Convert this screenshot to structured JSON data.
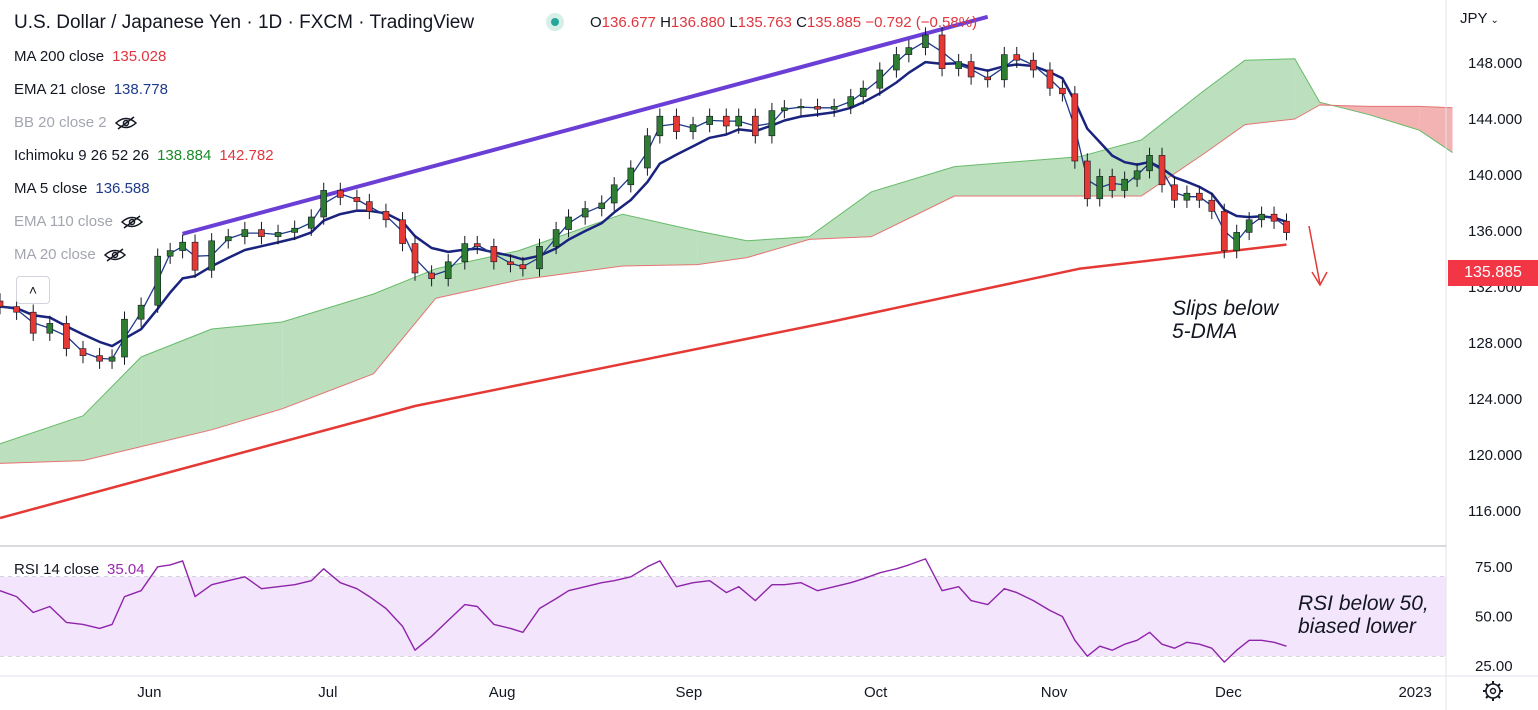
{
  "header": {
    "title": "U.S. Dollar / Japanese Yen · 1D · FXCM · TradingView",
    "ohlc": {
      "open_label": "O",
      "open": "136.677",
      "high_label": "H",
      "high": "136.880",
      "low_label": "L",
      "low": "135.763",
      "close_label": "C",
      "close": "135.885",
      "change": "−0.792 (−0.58%)"
    },
    "currency_menu": "JPY"
  },
  "legend": [
    {
      "label": "MA 200 close",
      "value": "135.028",
      "color": "#e0363f",
      "visible": true
    },
    {
      "label": "EMA 21 close",
      "value": "138.778",
      "color": "#1e3a8a",
      "visible": true
    },
    {
      "label": "BB 20 close 2",
      "value": "",
      "visible": false
    },
    {
      "label": "Ichimoku 9 26 52 26",
      "value": "138.884",
      "value2": "142.782",
      "color": "#1b8a2a",
      "color2": "#e0363f",
      "visible": true
    },
    {
      "label": "MA 5 close",
      "value": "136.588",
      "color": "#1e3a8a",
      "visible": true
    },
    {
      "label": "EMA 110 close",
      "value": "",
      "visible": false
    },
    {
      "label": "MA 20 close",
      "value": "",
      "visible": false
    }
  ],
  "rsi_legend": {
    "label": "RSI 14 close",
    "value": "35.04",
    "color": "#9b27af"
  },
  "annotations": {
    "price_note": "Slips below\n5-DMA",
    "rsi_note": "RSI below 50,\nbiased lower"
  },
  "last_price_tag": "135.885",
  "chart_data": {
    "type": "candlestick",
    "price_axis": {
      "ticks": [
        "148.000",
        "144.000",
        "140.000",
        "136.000",
        "132.000",
        "128.000",
        "124.000",
        "120.000",
        "116.000"
      ],
      "ylim": [
        113.5,
        152.5
      ]
    },
    "rsi_axis": {
      "ticks": [
        "75.00",
        "50.00",
        "25.00"
      ],
      "ylim": [
        20,
        85
      ],
      "band": [
        30,
        70
      ]
    },
    "x_axis": {
      "ticks": [
        "Jun",
        "Jul",
        "Aug",
        "Sep",
        "Oct",
        "Nov",
        "Dec",
        "2023"
      ]
    },
    "colors": {
      "up": "#2e7d32",
      "down": "#e53935",
      "cloud_bull": "#a5d6a7",
      "cloud_bear": "#ef9a9a",
      "trendline": "#6b3fd6",
      "ma200": "#e53935",
      "ema21": "#1a237e",
      "ma5": "#1e3a8a",
      "rsi": "#8e24aa",
      "rsi_band": "#f3e5fb"
    },
    "close_path": [
      {
        "day": 0,
        "close": 130.6
      },
      {
        "day": 4,
        "close": 130.2
      },
      {
        "day": 8,
        "close": 128.7
      },
      {
        "day": 12,
        "close": 129.4
      },
      {
        "day": 16,
        "close": 127.6
      },
      {
        "day": 20,
        "close": 127.1
      },
      {
        "day": 24,
        "close": 126.7
      },
      {
        "day": 27,
        "close": 127.0
      },
      {
        "day": 30,
        "close": 129.7
      },
      {
        "day": 34,
        "close": 130.7
      },
      {
        "day": 38,
        "close": 134.2
      },
      {
        "day": 41,
        "close": 134.6
      },
      {
        "day": 44,
        "close": 135.2
      },
      {
        "day": 47,
        "close": 133.2
      },
      {
        "day": 51,
        "close": 135.3
      },
      {
        "day": 55,
        "close": 135.6
      },
      {
        "day": 59,
        "close": 136.1
      },
      {
        "day": 63,
        "close": 135.6
      },
      {
        "day": 67,
        "close": 135.9
      },
      {
        "day": 71,
        "close": 136.2
      },
      {
        "day": 75,
        "close": 137.0
      },
      {
        "day": 78,
        "close": 138.9
      },
      {
        "day": 82,
        "close": 138.4
      },
      {
        "day": 86,
        "close": 138.1
      },
      {
        "day": 89,
        "close": 137.4
      },
      {
        "day": 93,
        "close": 136.8
      },
      {
        "day": 97,
        "close": 135.1
      },
      {
        "day": 100,
        "close": 133.0
      },
      {
        "day": 104,
        "close": 132.6
      },
      {
        "day": 108,
        "close": 133.8
      },
      {
        "day": 112,
        "close": 135.1
      },
      {
        "day": 115,
        "close": 134.9
      },
      {
        "day": 119,
        "close": 133.8
      },
      {
        "day": 123,
        "close": 133.6
      },
      {
        "day": 126,
        "close": 133.3
      },
      {
        "day": 130,
        "close": 134.9
      },
      {
        "day": 134,
        "close": 136.1
      },
      {
        "day": 137,
        "close": 137.0
      },
      {
        "day": 141,
        "close": 137.6
      },
      {
        "day": 145,
        "close": 138.0
      },
      {
        "day": 148,
        "close": 139.3
      },
      {
        "day": 152,
        "close": 140.5
      },
      {
        "day": 156,
        "close": 142.8
      },
      {
        "day": 159,
        "close": 144.2
      },
      {
        "day": 163,
        "close": 143.1
      },
      {
        "day": 167,
        "close": 143.6
      },
      {
        "day": 171,
        "close": 144.2
      },
      {
        "day": 175,
        "close": 143.5
      },
      {
        "day": 178,
        "close": 144.2
      },
      {
        "day": 182,
        "close": 142.8
      },
      {
        "day": 186,
        "close": 144.6
      },
      {
        "day": 189,
        "close": 144.8
      },
      {
        "day": 193,
        "close": 144.9
      },
      {
        "day": 197,
        "close": 144.7
      },
      {
        "day": 201,
        "close": 144.9
      },
      {
        "day": 205,
        "close": 145.6
      },
      {
        "day": 208,
        "close": 146.2
      },
      {
        "day": 212,
        "close": 147.5
      },
      {
        "day": 216,
        "close": 148.6
      },
      {
        "day": 219,
        "close": 149.1
      },
      {
        "day": 223,
        "close": 150.0
      },
      {
        "day": 227,
        "close": 147.6
      },
      {
        "day": 231,
        "close": 148.1
      },
      {
        "day": 234,
        "close": 147.0
      },
      {
        "day": 238,
        "close": 146.8
      },
      {
        "day": 242,
        "close": 148.6
      },
      {
        "day": 245,
        "close": 148.2
      },
      {
        "day": 249,
        "close": 147.5
      },
      {
        "day": 253,
        "close": 146.2
      },
      {
        "day": 256,
        "close": 145.8
      },
      {
        "day": 259,
        "close": 141.0
      },
      {
        "day": 262,
        "close": 138.3
      },
      {
        "day": 265,
        "close": 139.9
      },
      {
        "day": 268,
        "close": 138.9
      },
      {
        "day": 271,
        "close": 139.7
      },
      {
        "day": 274,
        "close": 140.3
      },
      {
        "day": 277,
        "close": 141.4
      },
      {
        "day": 280,
        "close": 139.3
      },
      {
        "day": 283,
        "close": 138.2
      },
      {
        "day": 286,
        "close": 138.7
      },
      {
        "day": 289,
        "close": 138.2
      },
      {
        "day": 292,
        "close": 137.4
      },
      {
        "day": 295,
        "close": 134.6
      },
      {
        "day": 298,
        "close": 135.9
      },
      {
        "day": 301,
        "close": 136.8
      },
      {
        "day": 304,
        "close": 137.2
      },
      {
        "day": 307,
        "close": 136.7
      },
      {
        "day": 310,
        "close": 135.885
      }
    ],
    "rsi": [
      {
        "day": 0,
        "v": 63
      },
      {
        "day": 4,
        "v": 60
      },
      {
        "day": 8,
        "v": 52
      },
      {
        "day": 12,
        "v": 55
      },
      {
        "day": 16,
        "v": 47
      },
      {
        "day": 20,
        "v": 46
      },
      {
        "day": 24,
        "v": 44
      },
      {
        "day": 27,
        "v": 46
      },
      {
        "day": 30,
        "v": 60
      },
      {
        "day": 34,
        "v": 63
      },
      {
        "day": 38,
        "v": 75
      },
      {
        "day": 41,
        "v": 76
      },
      {
        "day": 44,
        "v": 78
      },
      {
        "day": 47,
        "v": 60
      },
      {
        "day": 51,
        "v": 66
      },
      {
        "day": 55,
        "v": 68
      },
      {
        "day": 59,
        "v": 70
      },
      {
        "day": 63,
        "v": 64
      },
      {
        "day": 67,
        "v": 65
      },
      {
        "day": 71,
        "v": 66
      },
      {
        "day": 75,
        "v": 68
      },
      {
        "day": 78,
        "v": 74
      },
      {
        "day": 82,
        "v": 67
      },
      {
        "day": 86,
        "v": 64
      },
      {
        "day": 89,
        "v": 60
      },
      {
        "day": 93,
        "v": 54
      },
      {
        "day": 97,
        "v": 45
      },
      {
        "day": 100,
        "v": 33
      },
      {
        "day": 104,
        "v": 40
      },
      {
        "day": 108,
        "v": 48
      },
      {
        "day": 112,
        "v": 56
      },
      {
        "day": 115,
        "v": 55
      },
      {
        "day": 119,
        "v": 46
      },
      {
        "day": 123,
        "v": 44
      },
      {
        "day": 126,
        "v": 42
      },
      {
        "day": 130,
        "v": 54
      },
      {
        "day": 134,
        "v": 59
      },
      {
        "day": 137,
        "v": 63
      },
      {
        "day": 141,
        "v": 65
      },
      {
        "day": 145,
        "v": 67
      },
      {
        "day": 148,
        "v": 68
      },
      {
        "day": 152,
        "v": 70
      },
      {
        "day": 156,
        "v": 75
      },
      {
        "day": 159,
        "v": 78
      },
      {
        "day": 163,
        "v": 65
      },
      {
        "day": 167,
        "v": 67
      },
      {
        "day": 171,
        "v": 68
      },
      {
        "day": 175,
        "v": 62
      },
      {
        "day": 178,
        "v": 65
      },
      {
        "day": 182,
        "v": 58
      },
      {
        "day": 186,
        "v": 66
      },
      {
        "day": 189,
        "v": 66
      },
      {
        "day": 193,
        "v": 67
      },
      {
        "day": 197,
        "v": 63
      },
      {
        "day": 201,
        "v": 65
      },
      {
        "day": 205,
        "v": 67
      },
      {
        "day": 208,
        "v": 69
      },
      {
        "day": 212,
        "v": 72
      },
      {
        "day": 216,
        "v": 74
      },
      {
        "day": 219,
        "v": 76
      },
      {
        "day": 223,
        "v": 79
      },
      {
        "day": 227,
        "v": 63
      },
      {
        "day": 231,
        "v": 65
      },
      {
        "day": 234,
        "v": 58
      },
      {
        "day": 238,
        "v": 56
      },
      {
        "day": 242,
        "v": 64
      },
      {
        "day": 245,
        "v": 62
      },
      {
        "day": 249,
        "v": 58
      },
      {
        "day": 253,
        "v": 53
      },
      {
        "day": 256,
        "v": 50
      },
      {
        "day": 259,
        "v": 38
      },
      {
        "day": 262,
        "v": 30
      },
      {
        "day": 265,
        "v": 35
      },
      {
        "day": 268,
        "v": 33
      },
      {
        "day": 271,
        "v": 36
      },
      {
        "day": 274,
        "v": 38
      },
      {
        "day": 277,
        "v": 42
      },
      {
        "day": 280,
        "v": 36
      },
      {
        "day": 283,
        "v": 34
      },
      {
        "day": 286,
        "v": 37
      },
      {
        "day": 289,
        "v": 36
      },
      {
        "day": 292,
        "v": 34
      },
      {
        "day": 295,
        "v": 27
      },
      {
        "day": 298,
        "v": 33
      },
      {
        "day": 301,
        "v": 38
      },
      {
        "day": 304,
        "v": 38
      },
      {
        "day": 307,
        "v": 37
      },
      {
        "day": 310,
        "v": 35.04
      }
    ],
    "ma200": [
      {
        "day": 0,
        "v": 115.5
      },
      {
        "day": 100,
        "v": 123.5
      },
      {
        "day": 200,
        "v": 129.5
      },
      {
        "day": 260,
        "v": 133.3
      },
      {
        "day": 310,
        "v": 135.028
      }
    ],
    "trendline": [
      {
        "day": 44,
        "v": 135.8
      },
      {
        "day": 238,
        "v": 151.3
      }
    ],
    "cloud": [
      {
        "day": 0,
        "a": 120.8,
        "b": 119.4
      },
      {
        "day": 20,
        "a": 122.8,
        "b": 119.6
      },
      {
        "day": 34,
        "a": 127.0,
        "b": 120.6
      },
      {
        "day": 51,
        "a": 129.0,
        "b": 121.8
      },
      {
        "day": 68,
        "a": 129.5,
        "b": 123.3
      },
      {
        "day": 90,
        "a": 131.5,
        "b": 125.8
      },
      {
        "day": 105,
        "a": 133.3,
        "b": 131.2
      },
      {
        "day": 125,
        "a": 134.6,
        "b": 132.5
      },
      {
        "day": 150,
        "a": 137.2,
        "b": 133.5
      },
      {
        "day": 168,
        "a": 136.0,
        "b": 133.6
      },
      {
        "day": 180,
        "a": 135.3,
        "b": 134.1
      },
      {
        "day": 195,
        "a": 135.6,
        "b": 135.4
      },
      {
        "day": 210,
        "a": 138.8,
        "b": 135.6
      },
      {
        "day": 230,
        "a": 140.6,
        "b": 138.5
      },
      {
        "day": 260,
        "a": 141.3,
        "b": 138.5
      },
      {
        "day": 275,
        "a": 142.5,
        "b": 138.5
      },
      {
        "day": 290,
        "a": 146.0,
        "b": 141.5
      },
      {
        "day": 300,
        "a": 148.2,
        "b": 143.6
      },
      {
        "day": 312,
        "a": 148.3,
        "b": 144.0
      },
      {
        "day": 318,
        "a": 145.2,
        "b": 145.0
      },
      {
        "day": 330,
        "a": 144.3,
        "b": 144.9
      },
      {
        "day": 342,
        "a": 143.2,
        "b": 144.9
      },
      {
        "day": 350,
        "a": 141.6,
        "b": 144.8
      }
    ]
  }
}
